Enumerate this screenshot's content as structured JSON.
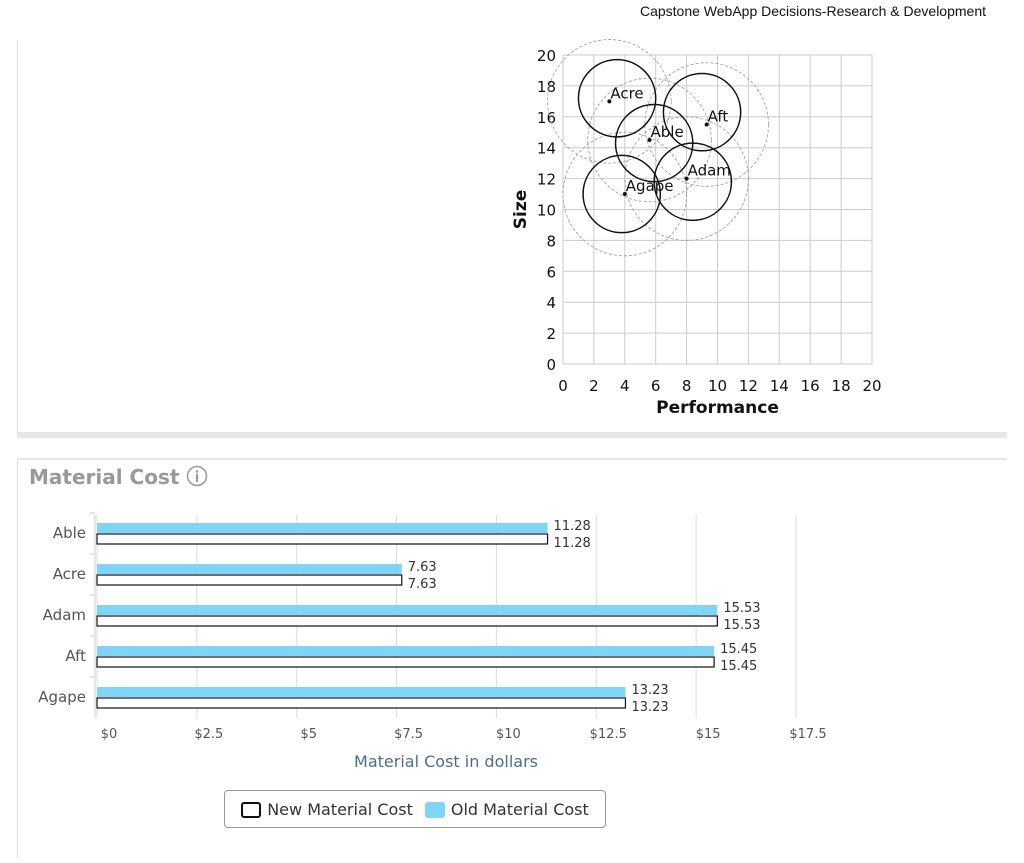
{
  "header": {
    "title": "Capstone WebApp Decisions-Research & Development"
  },
  "chart_data": [
    {
      "type": "scatter",
      "xlabel": "Performance",
      "ylabel": "Size",
      "xlim": [
        0,
        20
      ],
      "ylim": [
        0,
        20
      ],
      "xticks": [
        0,
        2,
        4,
        6,
        8,
        10,
        12,
        14,
        16,
        18,
        20
      ],
      "yticks": [
        0,
        2,
        4,
        6,
        8,
        10,
        12,
        14,
        16,
        18,
        20
      ],
      "grid": true,
      "points": [
        {
          "label": "Acre",
          "x": 3.0,
          "y": 17.0
        },
        {
          "label": "Aft",
          "x": 9.3,
          "y": 15.5
        },
        {
          "label": "Able",
          "x": 5.6,
          "y": 14.5
        },
        {
          "label": "Adam",
          "x": 8.0,
          "y": 12.0
        },
        {
          "label": "Agape",
          "x": 4.0,
          "y": 11.0
        }
      ]
    },
    {
      "type": "bar",
      "orientation": "horizontal",
      "title": "Material Cost",
      "xlabel": "Material Cost in dollars",
      "categories": [
        "Able",
        "Acre",
        "Adam",
        "Aft",
        "Agape"
      ],
      "xlim": [
        0,
        17.5
      ],
      "xticks": [
        "$0",
        "$2.5",
        "$5",
        "$7.5",
        "$10",
        "$12.5",
        "$15",
        "$17.5"
      ],
      "legend": "bottom",
      "series": [
        {
          "name": "Old Material Cost",
          "color": "#7fd4f8",
          "values": [
            11.28,
            7.63,
            15.53,
            15.45,
            13.23
          ]
        },
        {
          "name": "New Material Cost",
          "color": "#ffffff",
          "values": [
            11.28,
            7.63,
            15.53,
            15.45,
            13.23
          ]
        }
      ]
    }
  ]
}
